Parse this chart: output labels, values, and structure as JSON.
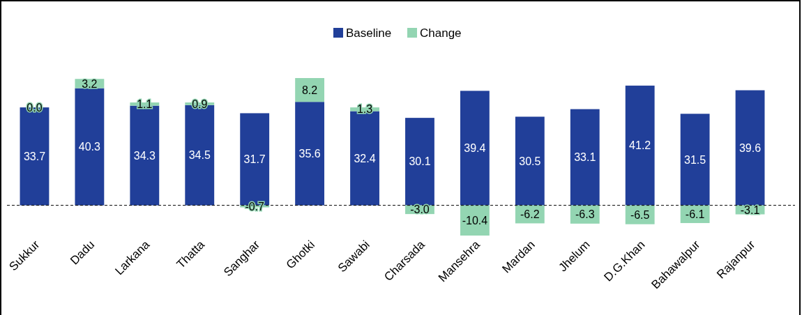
{
  "chart_data": {
    "type": "bar",
    "stacked": true,
    "categories": [
      "Sukkur",
      "Dadu",
      "Larkana",
      "Thatta",
      "Sanghar",
      "Ghotki",
      "Sawabi",
      "Charsada",
      "Mansehra",
      "Mardan",
      "Jhelum",
      "D.G.Khan",
      "Bahawalpur",
      "Rajanpur"
    ],
    "series": [
      {
        "name": "Baseline",
        "color": "#213f99",
        "values": [
          33.7,
          40.3,
          34.3,
          34.5,
          31.7,
          35.6,
          32.4,
          30.1,
          39.4,
          30.5,
          33.1,
          41.2,
          31.5,
          39.6
        ],
        "value_labels": [
          "33.7",
          "40.3",
          "34.3",
          "34.5",
          "31.7",
          "35.6",
          "32.4",
          "30.1",
          "39.4",
          "30.5",
          "33.1",
          "41.2",
          "31.5",
          "39.6"
        ]
      },
      {
        "name": "Change",
        "color": "#93d5b2",
        "values": [
          0.0,
          3.2,
          1.1,
          0.9,
          -0.7,
          8.2,
          1.3,
          -3.0,
          -10.4,
          -6.2,
          -6.3,
          -6.5,
          -6.1,
          -3.1
        ],
        "value_labels": [
          "0.0",
          "3.2",
          "1.1",
          "0.9",
          "-0.7",
          "8.2",
          "1.3",
          "-3.0",
          "-10.4",
          "-6.2",
          "-6.3",
          "-6.5",
          "-6.1",
          "-3.1"
        ]
      }
    ],
    "ref_lines": [
      {
        "axis": "y",
        "value": 0,
        "color": "#000000",
        "line_style": "dashed"
      }
    ],
    "legend": "top"
  }
}
